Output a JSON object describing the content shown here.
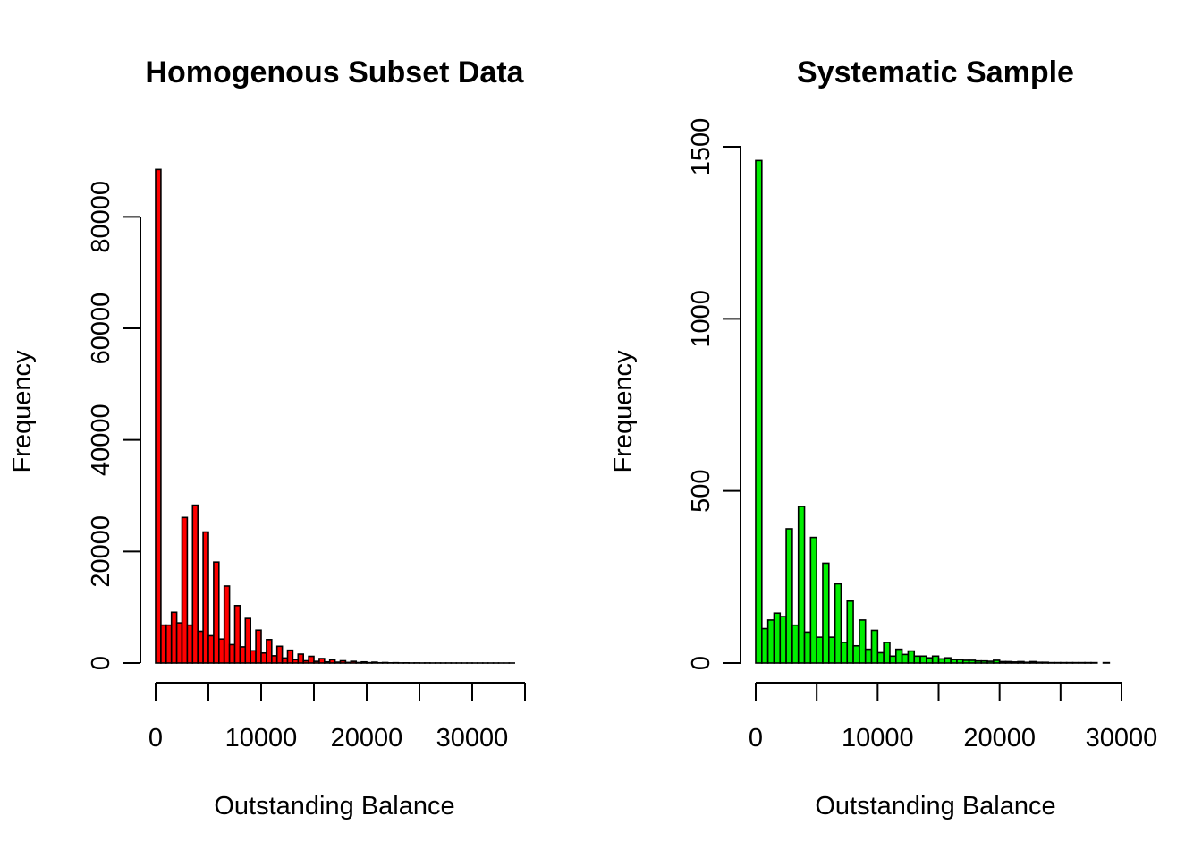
{
  "chart_data": [
    {
      "type": "bar",
      "title": "Homogenous Subset Data",
      "xlabel": "Outstanding Balance",
      "ylabel": "Frequency",
      "xlim": [
        0,
        35000
      ],
      "ylim": [
        0,
        90000
      ],
      "x_ticks": [
        0,
        5000,
        10000,
        15000,
        20000,
        25000,
        30000,
        35000
      ],
      "x_tick_labels": [
        "0",
        "",
        "10000",
        "",
        "20000",
        "",
        "30000",
        ""
      ],
      "y_ticks": [
        0,
        20000,
        40000,
        60000,
        80000
      ],
      "y_tick_labels": [
        "0",
        "20000",
        "40000",
        "60000",
        "80000"
      ],
      "bin_start": 0,
      "bin_width": 500,
      "bar_color": "#ff0000",
      "border_color": "#000000",
      "values": [
        88500,
        6800,
        6800,
        9100,
        7200,
        26100,
        6800,
        28300,
        5700,
        23500,
        4900,
        18100,
        4300,
        13800,
        3300,
        10300,
        2900,
        8000,
        2200,
        5900,
        1800,
        4200,
        1300,
        3000,
        900,
        2300,
        600,
        1600,
        400,
        1200,
        300,
        800,
        200,
        600,
        150,
        400,
        100,
        300,
        80,
        200,
        60,
        150,
        40,
        80,
        30,
        50,
        20,
        30,
        10,
        20,
        8,
        15,
        5,
        10,
        4,
        8,
        3,
        5,
        2,
        4,
        1,
        2,
        1,
        1,
        1,
        1,
        1,
        1
      ]
    },
    {
      "type": "bar",
      "title": "Systematic Sample",
      "xlabel": "Outstanding Balance",
      "ylabel": "Frequency",
      "xlim": [
        0,
        30000
      ],
      "ylim": [
        0,
        1500
      ],
      "x_ticks": [
        0,
        5000,
        10000,
        15000,
        20000,
        25000,
        30000
      ],
      "x_tick_labels": [
        "0",
        "",
        "10000",
        "",
        "20000",
        "",
        "30000"
      ],
      "y_ticks": [
        0,
        500,
        1000,
        1500
      ],
      "y_tick_labels": [
        "0",
        "500",
        "1000",
        "1500"
      ],
      "bin_start": 0,
      "bin_width": 500,
      "bar_color": "#00ee00",
      "border_color": "#000000",
      "values": [
        1460,
        100,
        125,
        145,
        135,
        390,
        110,
        455,
        90,
        365,
        75,
        290,
        75,
        230,
        60,
        180,
        50,
        125,
        40,
        95,
        30,
        60,
        20,
        40,
        25,
        35,
        20,
        20,
        15,
        20,
        12,
        15,
        10,
        10,
        8,
        8,
        6,
        6,
        5,
        8,
        4,
        4,
        3,
        4,
        2,
        4,
        2,
        2,
        1,
        1,
        1,
        1,
        1,
        1,
        1,
        1,
        0,
        1,
        0,
        0
      ]
    }
  ]
}
